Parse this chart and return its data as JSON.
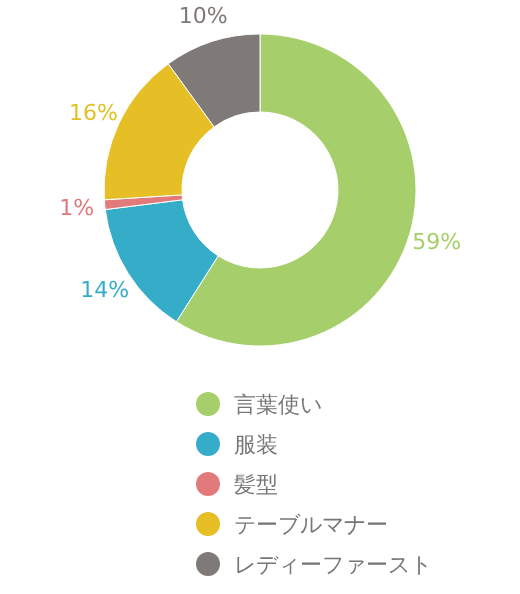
{
  "chart_data": {
    "type": "donut",
    "categories": [
      "言葉使い",
      "服装",
      "髪型",
      "テーブルマナー",
      "レディーファースト"
    ],
    "values": [
      59,
      14,
      1,
      16,
      10
    ],
    "colors": [
      "#a6cf6b",
      "#35adc9",
      "#e27a7c",
      "#e5bf25",
      "#7f7a78"
    ],
    "value_labels": [
      "59%",
      "14%",
      "1%",
      "16%",
      "10%"
    ],
    "legend": "bottom"
  }
}
